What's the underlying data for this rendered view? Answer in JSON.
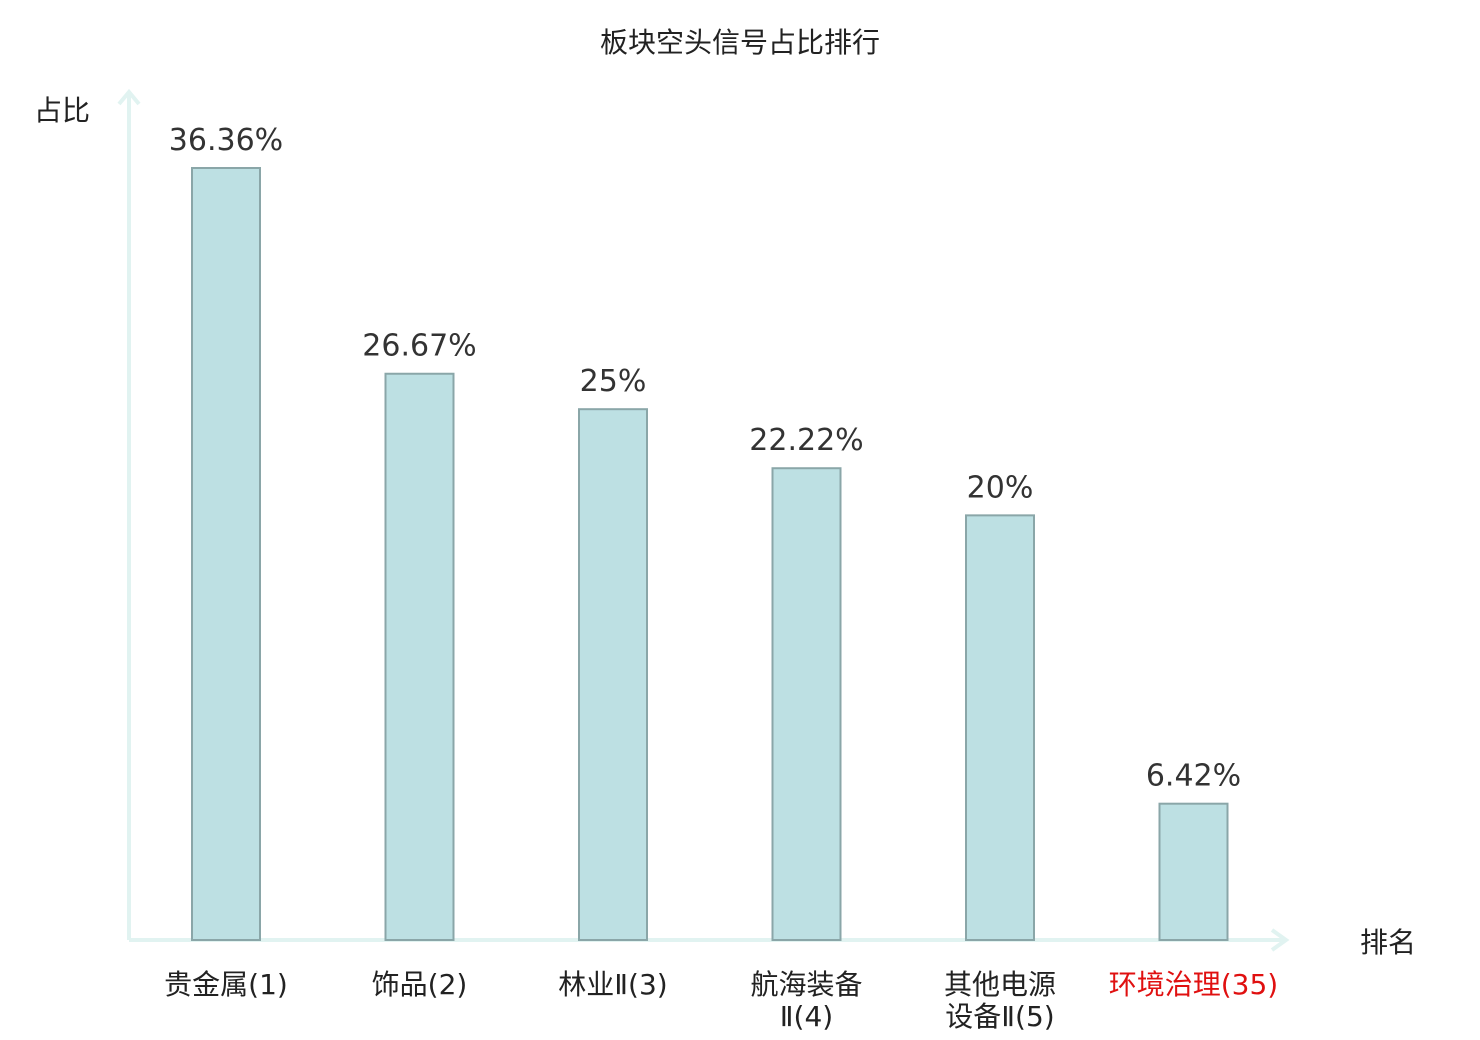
{
  "chart_data": {
    "type": "bar",
    "title": "板块空头信号占比排行",
    "ylabel": "占比",
    "xlabel": "排名",
    "ylim": [
      0,
      40
    ],
    "grid": false,
    "categories": [
      "贵金属(1)",
      "饰品(2)",
      "林业Ⅱ(3)",
      "航海装备Ⅱ(4)",
      "其他电源设备Ⅱ(5)",
      "环境治理(35)"
    ],
    "category_lines": [
      [
        "贵金属(1)"
      ],
      [
        "饰品(2)"
      ],
      [
        "林业Ⅱ(3)"
      ],
      [
        "航海装备",
        "Ⅱ(4)"
      ],
      [
        "其他电源",
        "设备Ⅱ(5)"
      ],
      [
        "环境治理(35)"
      ]
    ],
    "values": [
      36.36,
      26.67,
      25,
      22.22,
      20,
      6.42
    ],
    "value_labels": [
      "36.36%",
      "26.67%",
      "25%",
      "22.22%",
      "20%",
      "6.42%"
    ],
    "highlight_index": 5,
    "colors": {
      "bar_fill": "#bde0e3",
      "bar_stroke": "#8aa6a8",
      "axis": "#e1f3f1",
      "highlight_text": "#e01010",
      "text": "#222222"
    }
  }
}
